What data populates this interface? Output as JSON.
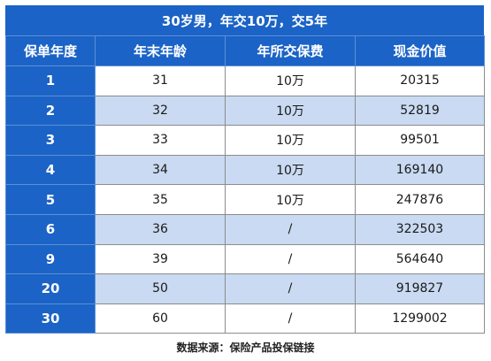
{
  "table": {
    "title": "30岁男，年交10万，交5年",
    "headers": [
      "保单年度",
      "年末年龄",
      "年所交保费",
      "现金价值"
    ],
    "rows": [
      [
        "1",
        "31",
        "10万",
        "20315"
      ],
      [
        "2",
        "32",
        "10万",
        "52819"
      ],
      [
        "3",
        "33",
        "10万",
        "99501"
      ],
      [
        "4",
        "34",
        "10万",
        "169140"
      ],
      [
        "5",
        "35",
        "10万",
        "247876"
      ],
      [
        "6",
        "36",
        "/",
        "322503"
      ],
      [
        "9",
        "39",
        "/",
        "564640"
      ],
      [
        "20",
        "50",
        "/",
        "919827"
      ],
      [
        "30",
        "60",
        "/",
        "1299002"
      ]
    ]
  },
  "source": "数据来源：保险产品投保链接",
  "colors": {
    "header_blue": "#1b63c6",
    "alt_row": "#c9daf2"
  }
}
